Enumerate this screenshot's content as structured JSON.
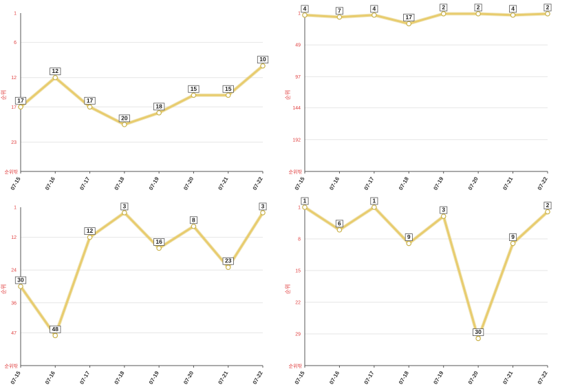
{
  "chart_data": [
    {
      "type": "line",
      "ylabel": "순위",
      "bottom_label": "순위밖",
      "y_reversed": true,
      "yticks": [
        1,
        6,
        12,
        17,
        23
      ],
      "ylim": [
        1,
        28
      ],
      "x": [
        "07-15",
        "07-16",
        "07-17",
        "07-18",
        "07-19",
        "07-20",
        "07-21",
        "07-22"
      ],
      "series": [
        {
          "values": [
            17,
            12,
            17,
            20,
            18,
            15,
            15,
            10
          ]
        }
      ],
      "line_color": "#e8cc6e"
    },
    {
      "type": "line",
      "ylabel": "순위",
      "bottom_label": "순위밖",
      "y_reversed": true,
      "yticks": [
        1,
        49,
        97,
        144,
        192
      ],
      "ylim": [
        1,
        240
      ],
      "x": [
        "07-15",
        "07-16",
        "07-17",
        "07-18",
        "07-19",
        "07-20",
        "07-21",
        "07-22"
      ],
      "series": [
        {
          "values": [
            4,
            7,
            4,
            17,
            2,
            2,
            4,
            2
          ]
        }
      ],
      "line_color": "#e8cc6e"
    },
    {
      "type": "line",
      "ylabel": "순위",
      "bottom_label": "순위밖",
      "y_reversed": true,
      "yticks": [
        1,
        12,
        24,
        36,
        47
      ],
      "ylim": [
        1,
        59
      ],
      "x": [
        "07-15",
        "07-16",
        "07-17",
        "07-18",
        "07-19",
        "07-20",
        "07-21",
        "07-22"
      ],
      "series": [
        {
          "values": [
            30,
            48,
            12,
            3,
            16,
            8,
            23,
            3
          ]
        }
      ],
      "line_color": "#e8cc6e"
    },
    {
      "type": "line",
      "ylabel": "순위",
      "bottom_label": "순위밖",
      "y_reversed": true,
      "yticks": [
        1,
        8,
        15,
        22,
        29
      ],
      "ylim": [
        1,
        36
      ],
      "x": [
        "07-15",
        "07-16",
        "07-17",
        "07-18",
        "07-19",
        "07-20",
        "07-21",
        "07-22"
      ],
      "series": [
        {
          "values": [
            1,
            6,
            1,
            9,
            3,
            30,
            9,
            2
          ]
        }
      ],
      "line_color": "#e8cc6e"
    }
  ]
}
